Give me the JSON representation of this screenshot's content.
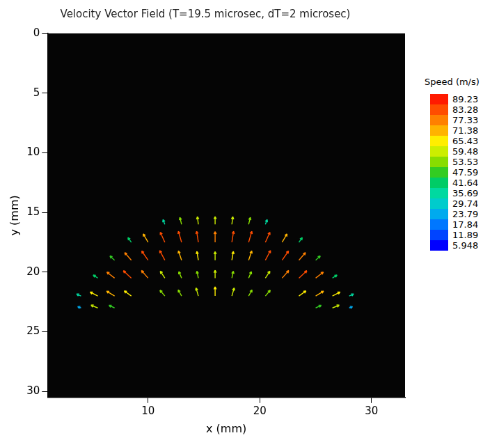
{
  "chart_data": {
    "type": "vector_field",
    "title": "Velocity Vector Field (T=19.5 microsec, dT=2 microsec)",
    "x_label": "x (mm)",
    "y_label": "y (mm)",
    "xlim": [
      1,
      33
    ],
    "xticks": [
      10,
      20,
      30
    ],
    "ylim": [
      30.5,
      0
    ],
    "yticks": [
      0,
      5,
      10,
      15,
      20,
      25,
      30
    ],
    "grid": false,
    "vectors": {
      "x": [
        11.5,
        13,
        14.5,
        16,
        17.5,
        19,
        20.5,
        8.5,
        10,
        11.5,
        13,
        14.5,
        16,
        17.5,
        19,
        20.5,
        22,
        23.5,
        7,
        8.5,
        10,
        11.5,
        13,
        14.5,
        16,
        17.5,
        19,
        20.5,
        22,
        23.5,
        25,
        5.5,
        7,
        8.5,
        10,
        11.5,
        13,
        14.5,
        16,
        17.5,
        19,
        20.5,
        22,
        23.5,
        25,
        26.5,
        4,
        5.5,
        7,
        8.5,
        11.5,
        13,
        14.5,
        16,
        17.5,
        19,
        20.5,
        23.5,
        25,
        26.5,
        28,
        4,
        5.5,
        7,
        25,
        26.5,
        28
      ],
      "y": [
        16,
        16,
        16,
        16,
        16,
        16,
        16,
        17.5,
        17.5,
        17.5,
        17.5,
        17.5,
        17.5,
        17.5,
        17.5,
        17.5,
        17.5,
        17.5,
        19,
        19,
        19,
        19,
        19,
        19,
        19,
        19,
        19,
        19,
        19,
        19,
        19,
        20.5,
        20.5,
        20.5,
        20.5,
        20.5,
        20.5,
        20.5,
        20.5,
        20.5,
        20.5,
        20.5,
        20.5,
        20.5,
        20.5,
        20.5,
        22,
        22,
        22,
        22,
        22,
        22,
        22,
        22,
        22,
        22,
        22,
        22,
        22,
        22,
        22,
        23,
        23,
        23,
        23,
        23,
        23
      ],
      "u": [
        -15,
        -14,
        -8,
        0,
        8,
        14,
        15,
        -28,
        -40,
        -37,
        -26,
        -14,
        0,
        14,
        26,
        37,
        40,
        28,
        -38,
        -54,
        -52,
        -42,
        -26,
        -12,
        0,
        12,
        26,
        42,
        52,
        54,
        38,
        -38,
        -63,
        -65,
        -54,
        -37,
        -23,
        -12,
        0,
        12,
        23,
        37,
        54,
        65,
        63,
        38,
        -37,
        -63,
        -65,
        -58,
        -40,
        -28,
        -19,
        0,
        19,
        28,
        40,
        58,
        65,
        63,
        37,
        -28,
        -56,
        -46,
        46,
        56,
        28
      ],
      "v": [
        -37,
        -53,
        -59,
        -60,
        -59,
        -53,
        -37,
        -36,
        -64,
        -77,
        -84,
        -84,
        -82,
        -84,
        -84,
        -77,
        -64,
        -36,
        -33,
        -58,
        -70,
        -74,
        -71,
        -67,
        -65,
        -67,
        -71,
        -74,
        -70,
        -58,
        -33,
        -24,
        -46,
        -57,
        -58,
        -53,
        -50,
        -53,
        -60,
        -53,
        -50,
        -53,
        -58,
        -57,
        -46,
        -24,
        -15,
        -30,
        -37,
        -39,
        -44,
        -47,
        -62,
        -70,
        -62,
        -47,
        -44,
        -39,
        -37,
        -30,
        -15,
        -10,
        -21,
        -20,
        -20,
        -21,
        -10
      ]
    },
    "colorbar": {
      "title": "Speed (m/s)",
      "levels": [
        89.23,
        83.28,
        77.33,
        71.38,
        65.43,
        59.48,
        53.53,
        47.59,
        41.64,
        35.69,
        29.74,
        23.79,
        17.84,
        11.89,
        5.948
      ],
      "colors": [
        "#ff1a00",
        "#ff4d00",
        "#ff8000",
        "#ffb300",
        "#ffee00",
        "#ccee00",
        "#88dd00",
        "#33cc22",
        "#00cc66",
        "#00d9a0",
        "#00cccc",
        "#00aaee",
        "#0077ff",
        "#0044ff",
        "#0000ff"
      ]
    }
  }
}
